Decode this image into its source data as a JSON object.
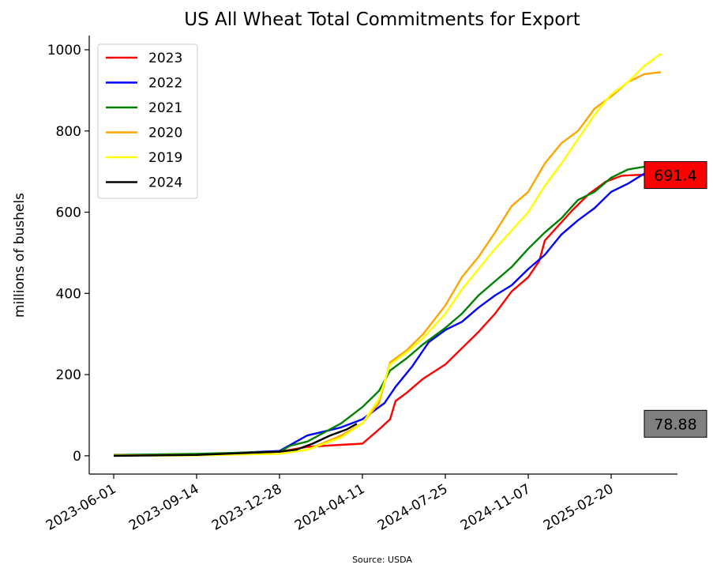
{
  "chart_data": {
    "type": "line",
    "title": "US All Wheat Total Commitments for Export",
    "xlabel": "",
    "ylabel": "millions of bushels",
    "source": "Source: USDA",
    "xlim": [
      "2023-05-01",
      "2025-05-15"
    ],
    "ylim": [
      -45,
      1035
    ],
    "x_ticks": [
      "2023-06-01",
      "2023-09-14",
      "2023-12-28",
      "2024-04-11",
      "2024-07-25",
      "2024-11-07",
      "2025-02-20"
    ],
    "y_ticks": [
      0,
      200,
      400,
      600,
      800,
      1000
    ],
    "grid": false,
    "legend_position": "top-left",
    "series": [
      {
        "name": "2023",
        "color": "#ff0000",
        "points": [
          [
            "2023-06-01",
            2
          ],
          [
            "2023-09-14",
            3
          ],
          [
            "2023-12-28",
            10
          ],
          [
            "2024-02-01",
            22
          ],
          [
            "2024-03-15",
            27
          ],
          [
            "2024-04-11",
            30
          ],
          [
            "2024-05-02",
            65
          ],
          [
            "2024-05-16",
            90
          ],
          [
            "2024-05-23",
            135
          ],
          [
            "2024-06-06",
            155
          ],
          [
            "2024-06-27",
            190
          ],
          [
            "2024-07-25",
            225
          ],
          [
            "2024-08-15",
            265
          ],
          [
            "2024-09-05",
            305
          ],
          [
            "2024-09-26",
            350
          ],
          [
            "2024-10-17",
            405
          ],
          [
            "2024-11-07",
            440
          ],
          [
            "2024-11-21",
            480
          ],
          [
            "2024-11-28",
            530
          ],
          [
            "2024-12-12",
            560
          ],
          [
            "2025-01-02",
            605
          ],
          [
            "2025-01-23",
            645
          ],
          [
            "2025-02-13",
            675
          ],
          [
            "2025-03-06",
            690
          ],
          [
            "2025-03-27",
            692
          ],
          [
            "2025-04-17",
            691.4
          ]
        ]
      },
      {
        "name": "2022",
        "color": "#0000ff",
        "points": [
          [
            "2023-06-01",
            1
          ],
          [
            "2023-09-14",
            3
          ],
          [
            "2023-12-28",
            12
          ],
          [
            "2024-02-01",
            50
          ],
          [
            "2024-03-15",
            70
          ],
          [
            "2024-04-11",
            90
          ],
          [
            "2024-05-09",
            130
          ],
          [
            "2024-05-23",
            170
          ],
          [
            "2024-06-13",
            220
          ],
          [
            "2024-07-04",
            280
          ],
          [
            "2024-07-25",
            310
          ],
          [
            "2024-08-15",
            330
          ],
          [
            "2024-09-05",
            365
          ],
          [
            "2024-09-26",
            395
          ],
          [
            "2024-10-17",
            420
          ],
          [
            "2024-11-07",
            460
          ],
          [
            "2024-11-28",
            495
          ],
          [
            "2024-12-19",
            545
          ],
          [
            "2025-01-09",
            580
          ],
          [
            "2025-01-30",
            610
          ],
          [
            "2025-02-20",
            650
          ],
          [
            "2025-03-13",
            670
          ],
          [
            "2025-04-03",
            695
          ],
          [
            "2025-04-24",
            685
          ]
        ]
      },
      {
        "name": "2021",
        "color": "#008000",
        "points": [
          [
            "2023-06-01",
            2
          ],
          [
            "2023-09-14",
            5
          ],
          [
            "2023-12-28",
            10
          ],
          [
            "2024-01-11",
            25
          ],
          [
            "2024-02-01",
            35
          ],
          [
            "2024-03-15",
            80
          ],
          [
            "2024-04-11",
            120
          ],
          [
            "2024-05-02",
            160
          ],
          [
            "2024-05-16",
            210
          ],
          [
            "2024-06-06",
            240
          ],
          [
            "2024-06-27",
            275
          ],
          [
            "2024-07-25",
            315
          ],
          [
            "2024-08-15",
            350
          ],
          [
            "2024-09-05",
            395
          ],
          [
            "2024-09-26",
            430
          ],
          [
            "2024-10-17",
            465
          ],
          [
            "2024-11-07",
            510
          ],
          [
            "2024-11-28",
            550
          ],
          [
            "2024-12-19",
            585
          ],
          [
            "2025-01-09",
            630
          ],
          [
            "2025-01-30",
            650
          ],
          [
            "2025-02-20",
            685
          ],
          [
            "2025-03-13",
            705
          ],
          [
            "2025-04-03",
            712
          ],
          [
            "2025-04-24",
            715
          ]
        ]
      },
      {
        "name": "2020",
        "color": "#ffa500",
        "points": [
          [
            "2023-06-01",
            1
          ],
          [
            "2023-09-14",
            2
          ],
          [
            "2023-12-28",
            5
          ],
          [
            "2024-02-01",
            15
          ],
          [
            "2024-03-15",
            50
          ],
          [
            "2024-04-11",
            80
          ],
          [
            "2024-05-02",
            130
          ],
          [
            "2024-05-16",
            230
          ],
          [
            "2024-06-06",
            260
          ],
          [
            "2024-06-27",
            300
          ],
          [
            "2024-07-25",
            370
          ],
          [
            "2024-08-15",
            440
          ],
          [
            "2024-09-05",
            490
          ],
          [
            "2024-09-26",
            550
          ],
          [
            "2024-10-17",
            615
          ],
          [
            "2024-11-07",
            650
          ],
          [
            "2024-11-28",
            720
          ],
          [
            "2024-12-19",
            770
          ],
          [
            "2025-01-09",
            800
          ],
          [
            "2025-01-30",
            855
          ],
          [
            "2025-02-20",
            885
          ],
          [
            "2025-03-13",
            920
          ],
          [
            "2025-04-03",
            940
          ],
          [
            "2025-04-24",
            945
          ]
        ]
      },
      {
        "name": "2019",
        "color": "#ffff00",
        "points": [
          [
            "2023-06-01",
            0
          ],
          [
            "2023-09-14",
            1
          ],
          [
            "2023-12-28",
            5
          ],
          [
            "2024-02-01",
            15
          ],
          [
            "2024-03-15",
            45
          ],
          [
            "2024-04-11",
            80
          ],
          [
            "2024-05-02",
            140
          ],
          [
            "2024-05-16",
            225
          ],
          [
            "2024-06-06",
            255
          ],
          [
            "2024-06-27",
            290
          ],
          [
            "2024-07-25",
            350
          ],
          [
            "2024-08-15",
            410
          ],
          [
            "2024-09-05",
            460
          ],
          [
            "2024-09-26",
            510
          ],
          [
            "2024-10-17",
            555
          ],
          [
            "2024-11-07",
            600
          ],
          [
            "2024-11-28",
            665
          ],
          [
            "2024-12-19",
            720
          ],
          [
            "2025-01-09",
            780
          ],
          [
            "2025-01-30",
            840
          ],
          [
            "2025-02-20",
            890
          ],
          [
            "2025-03-13",
            920
          ],
          [
            "2025-04-03",
            960
          ],
          [
            "2025-04-24",
            990
          ]
        ]
      },
      {
        "name": "2024",
        "color": "#000000",
        "points": [
          [
            "2023-06-01",
            0
          ],
          [
            "2023-09-14",
            2
          ],
          [
            "2023-12-28",
            10
          ],
          [
            "2024-01-18",
            15
          ],
          [
            "2024-02-08",
            30
          ],
          [
            "2024-03-01",
            50
          ],
          [
            "2024-03-22",
            65
          ],
          [
            "2024-04-04",
            78.88
          ]
        ]
      }
    ],
    "annotations": [
      {
        "text": "691.4",
        "fill": "#ff0000",
        "value": 691.4
      },
      {
        "text": "78.88",
        "fill": "#808080",
        "value": 78.88
      }
    ]
  }
}
